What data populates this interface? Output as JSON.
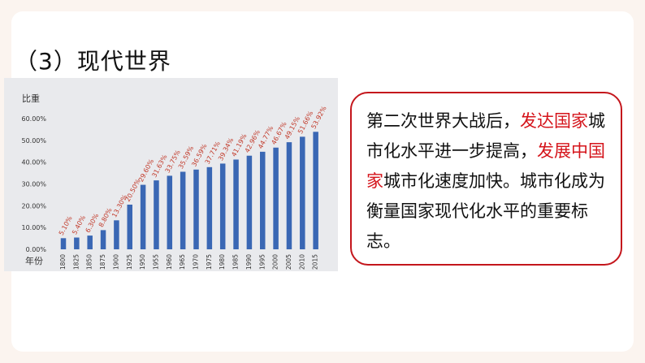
{
  "heading": "（3）现代世界",
  "callout": {
    "part1": "第二次世界大战后，",
    "hl1": "发达国家",
    "part2": "城市化水平进一步提高，",
    "hl2": "发展中国家",
    "part3": "城市化速度加快。城市化成为衡量国家现代化水平的重要标志。"
  },
  "colors": {
    "highlight": "#d5141b",
    "bar": "#3a67b4",
    "border": "#c4161c"
  },
  "chart_data": {
    "type": "bar",
    "ylabel": "比重",
    "xlabel": "年份",
    "ylim": [
      0,
      60
    ],
    "y_ticks": [
      "0.00%",
      "10.00%",
      "20.00%",
      "30.00%",
      "40.00%",
      "50.00%",
      "60.00%"
    ],
    "categories": [
      "1800",
      "1825",
      "1850",
      "1875",
      "1900",
      "1925",
      "1950",
      "1955",
      "1960",
      "1965",
      "1970",
      "1975",
      "1980",
      "1985",
      "1990",
      "1995",
      "2000",
      "2005",
      "2010",
      "2015"
    ],
    "values": [
      5.1,
      5.4,
      6.3,
      8.8,
      13.3,
      20.5,
      29.6,
      31.63,
      33.75,
      35.59,
      36.59,
      37.71,
      39.34,
      41.19,
      42.96,
      44.77,
      46.67,
      49.15,
      51.66,
      53.92
    ],
    "data_labels": [
      "5.10%",
      "5.40%",
      "6.30%",
      "8.80%",
      "13.30%",
      "20.50%",
      "29.60%",
      "31.63%",
      "33.75%",
      "35.59%",
      "36.59%",
      "37.71%",
      "39.34%",
      "41.19%",
      "42.96%",
      "44.77%",
      "46.67%",
      "49.15%",
      "51.66%",
      "53.92%"
    ],
    "grid": false,
    "legend": "none"
  }
}
